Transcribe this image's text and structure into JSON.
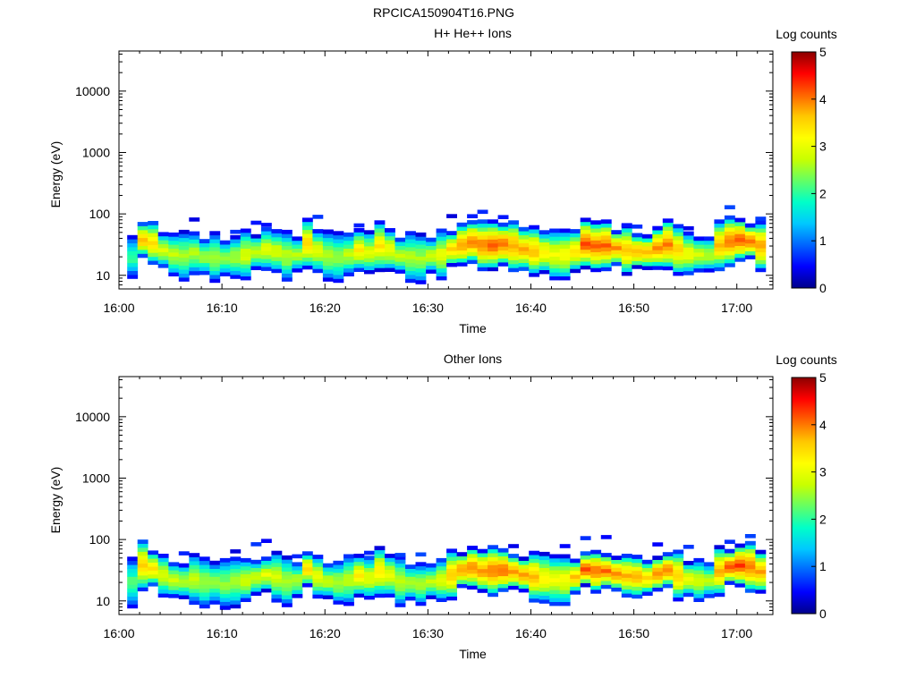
{
  "figure": {
    "title": "RPCICA150904T16.PNG"
  },
  "colors": {
    "colormap": [
      "#00008b",
      "#0000ff",
      "#0064ff",
      "#00c8ff",
      "#00ffc8",
      "#64ff64",
      "#c8ff00",
      "#ffff00",
      "#ffc800",
      "#ff6400",
      "#ff0000",
      "#8b0000"
    ],
    "axis": "#000000",
    "background": "#ffffff"
  },
  "chart_data": [
    {
      "type": "heatmap",
      "title": "H+ He++ Ions",
      "xlabel": "Time",
      "ylabel": "Energy (eV)",
      "x_tick_labels": [
        "16:00",
        "16:10",
        "16:20",
        "16:30",
        "16:40",
        "16:50",
        "17:00"
      ],
      "x_ticks_min": [
        0,
        10,
        20,
        30,
        40,
        50,
        60
      ],
      "xlim_min": [
        0,
        63.5
      ],
      "y_scale": "log",
      "y_tick_labels": [
        "10",
        "100",
        "1000",
        "10000"
      ],
      "y_ticks": [
        10,
        100,
        1000,
        10000
      ],
      "ylim": [
        6,
        45000
      ],
      "colorbar": {
        "label": "Log counts",
        "ticks": [
          "0",
          "1",
          "2",
          "3",
          "4",
          "5"
        ],
        "range": [
          0,
          5
        ]
      },
      "band_center_eV": [
        20,
        38,
        34,
        26,
        22,
        21,
        23,
        20,
        20,
        19,
        20,
        22,
        24,
        27,
        25,
        21,
        22,
        33,
        25,
        21,
        20,
        22,
        26,
        24,
        30,
        26,
        21,
        20,
        19,
        21,
        22,
        27,
        32,
        35,
        31,
        31,
        32,
        30,
        27,
        25,
        24,
        22,
        22,
        25,
        33,
        30,
        31,
        28,
        26,
        25,
        24,
        28,
        32,
        26,
        23,
        22,
        22,
        31,
        36,
        38,
        36,
        30
      ],
      "band_peak_log": [
        2.2,
        3.8,
        3.6,
        3.0,
        2.8,
        2.7,
        2.8,
        2.7,
        2.7,
        2.6,
        2.7,
        3.0,
        2.9,
        3.1,
        3.0,
        2.8,
        2.8,
        3.6,
        3.1,
        2.8,
        2.7,
        2.8,
        3.4,
        3.0,
        3.5,
        3.2,
        2.9,
        2.8,
        2.7,
        2.9,
        3.1,
        3.6,
        4.0,
        4.1,
        4.1,
        4.2,
        4.2,
        4.0,
        3.9,
        3.8,
        3.4,
        3.2,
        3.3,
        3.6,
        4.3,
        4.2,
        4.2,
        4.0,
        3.8,
        3.8,
        3.7,
        4.0,
        4.1,
        3.7,
        3.2,
        3.0,
        2.8,
        3.8,
        4.2,
        4.3,
        4.2,
        3.9
      ]
    },
    {
      "type": "heatmap",
      "title": "Other Ions",
      "xlabel": "Time",
      "ylabel": "Energy (eV)",
      "x_tick_labels": [
        "16:00",
        "16:10",
        "16:20",
        "16:30",
        "16:40",
        "16:50",
        "17:00"
      ],
      "x_ticks_min": [
        0,
        10,
        20,
        30,
        40,
        50,
        60
      ],
      "xlim_min": [
        0,
        63.5
      ],
      "y_scale": "log",
      "y_tick_labels": [
        "10",
        "100",
        "1000",
        "10000"
      ],
      "y_ticks": [
        10,
        100,
        1000,
        10000
      ],
      "ylim": [
        6,
        45000
      ],
      "colorbar": {
        "label": "Log counts",
        "ticks": [
          "0",
          "1",
          "2",
          "3",
          "4",
          "5"
        ],
        "range": [
          0,
          5
        ]
      },
      "band_center_eV": [
        20,
        38,
        34,
        26,
        22,
        21,
        23,
        20,
        20,
        19,
        20,
        22,
        24,
        27,
        25,
        21,
        22,
        33,
        25,
        21,
        20,
        22,
        26,
        24,
        30,
        26,
        21,
        20,
        19,
        21,
        22,
        27,
        32,
        35,
        31,
        31,
        32,
        30,
        27,
        25,
        24,
        22,
        22,
        25,
        33,
        30,
        31,
        28,
        26,
        25,
        24,
        28,
        32,
        26,
        23,
        22,
        22,
        31,
        36,
        38,
        36,
        30
      ],
      "band_peak_log": [
        2.3,
        3.7,
        3.6,
        3.0,
        2.9,
        2.8,
        2.9,
        2.7,
        2.6,
        2.6,
        2.7,
        3.0,
        2.9,
        3.1,
        3.0,
        2.8,
        2.8,
        3.6,
        3.1,
        2.9,
        2.8,
        2.8,
        3.4,
        3.1,
        3.5,
        3.2,
        2.9,
        2.8,
        2.7,
        2.9,
        3.1,
        3.7,
        4.0,
        4.1,
        4.0,
        4.1,
        4.2,
        4.0,
        3.9,
        3.8,
        3.4,
        3.2,
        3.3,
        3.7,
        4.3,
        4.2,
        4.2,
        4.0,
        3.8,
        3.8,
        3.6,
        4.0,
        4.1,
        3.7,
        3.2,
        3.0,
        2.8,
        3.9,
        4.3,
        4.4,
        4.2,
        3.9
      ]
    }
  ]
}
